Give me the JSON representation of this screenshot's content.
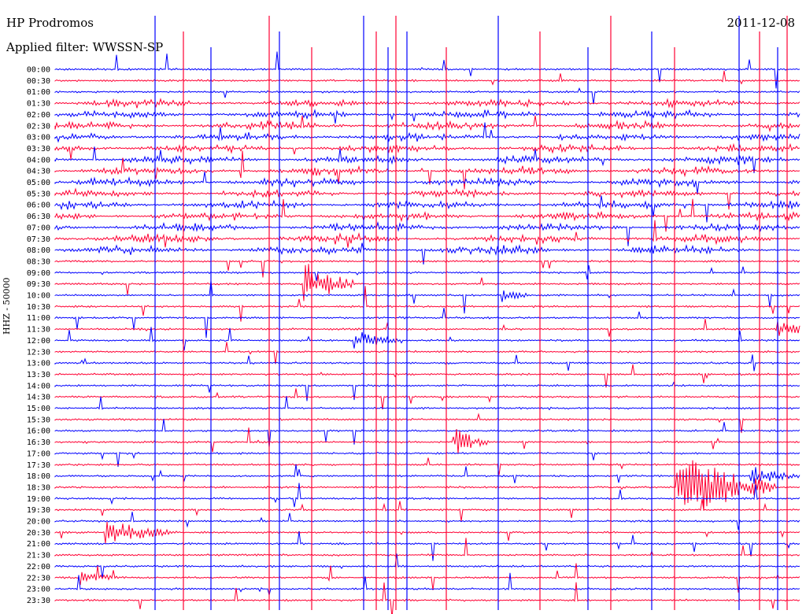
{
  "header": {
    "station": "HP Prodromos",
    "date": "2011-12-08",
    "filter": "Applied filter: WWSSN-SP"
  },
  "chart_data": {
    "type": "line",
    "title": "HP Prodromos",
    "ylabel": "HHZ - 50000",
    "row_labels": [
      "00:00",
      "00:30",
      "01:00",
      "01:30",
      "02:00",
      "02:30",
      "03:00",
      "03:30",
      "04:00",
      "04:30",
      "05:00",
      "05:30",
      "06:00",
      "06:30",
      "07:00",
      "07:30",
      "08:00",
      "08:30",
      "09:00",
      "09:30",
      "10:00",
      "10:30",
      "11:00",
      "11:30",
      "12:00",
      "12:30",
      "13:00",
      "13:30",
      "14:00",
      "14:30",
      "15:00",
      "15:30",
      "16:00",
      "16:30",
      "17:00",
      "17:30",
      "18:00",
      "18:30",
      "19:00",
      "19:30",
      "20:00",
      "20:30",
      "21:00",
      "21:30",
      "22:00",
      "22:30",
      "23:00",
      "23:30"
    ],
    "series_colors": [
      "#0000ff",
      "#ff0033"
    ],
    "events": [
      {
        "row": "20:30",
        "minute": 2,
        "amplitude": 1.0,
        "duration_min": 3
      },
      {
        "row": "22:30",
        "minute": 1,
        "amplitude": 0.5,
        "duration_min": 1.5
      },
      {
        "row": "18:00",
        "minute": 28,
        "amplitude": 0.8,
        "duration_min": 2
      },
      {
        "row": "18:30",
        "minute": 25,
        "amplitude": 3.0,
        "duration_min": 4
      },
      {
        "row": "16:30",
        "minute": 16,
        "amplitude": 1.2,
        "duration_min": 1.5
      },
      {
        "row": "09:30",
        "minute": 10,
        "amplitude": 2.0,
        "duration_min": 2
      },
      {
        "row": "11:30",
        "minute": 29,
        "amplitude": 0.7,
        "duration_min": 2
      },
      {
        "row": "12:00",
        "minute": 12,
        "amplitude": 0.8,
        "duration_min": 2
      },
      {
        "row": "10:00",
        "minute": 18,
        "amplitude": 0.6,
        "duration_min": 1
      }
    ]
  }
}
